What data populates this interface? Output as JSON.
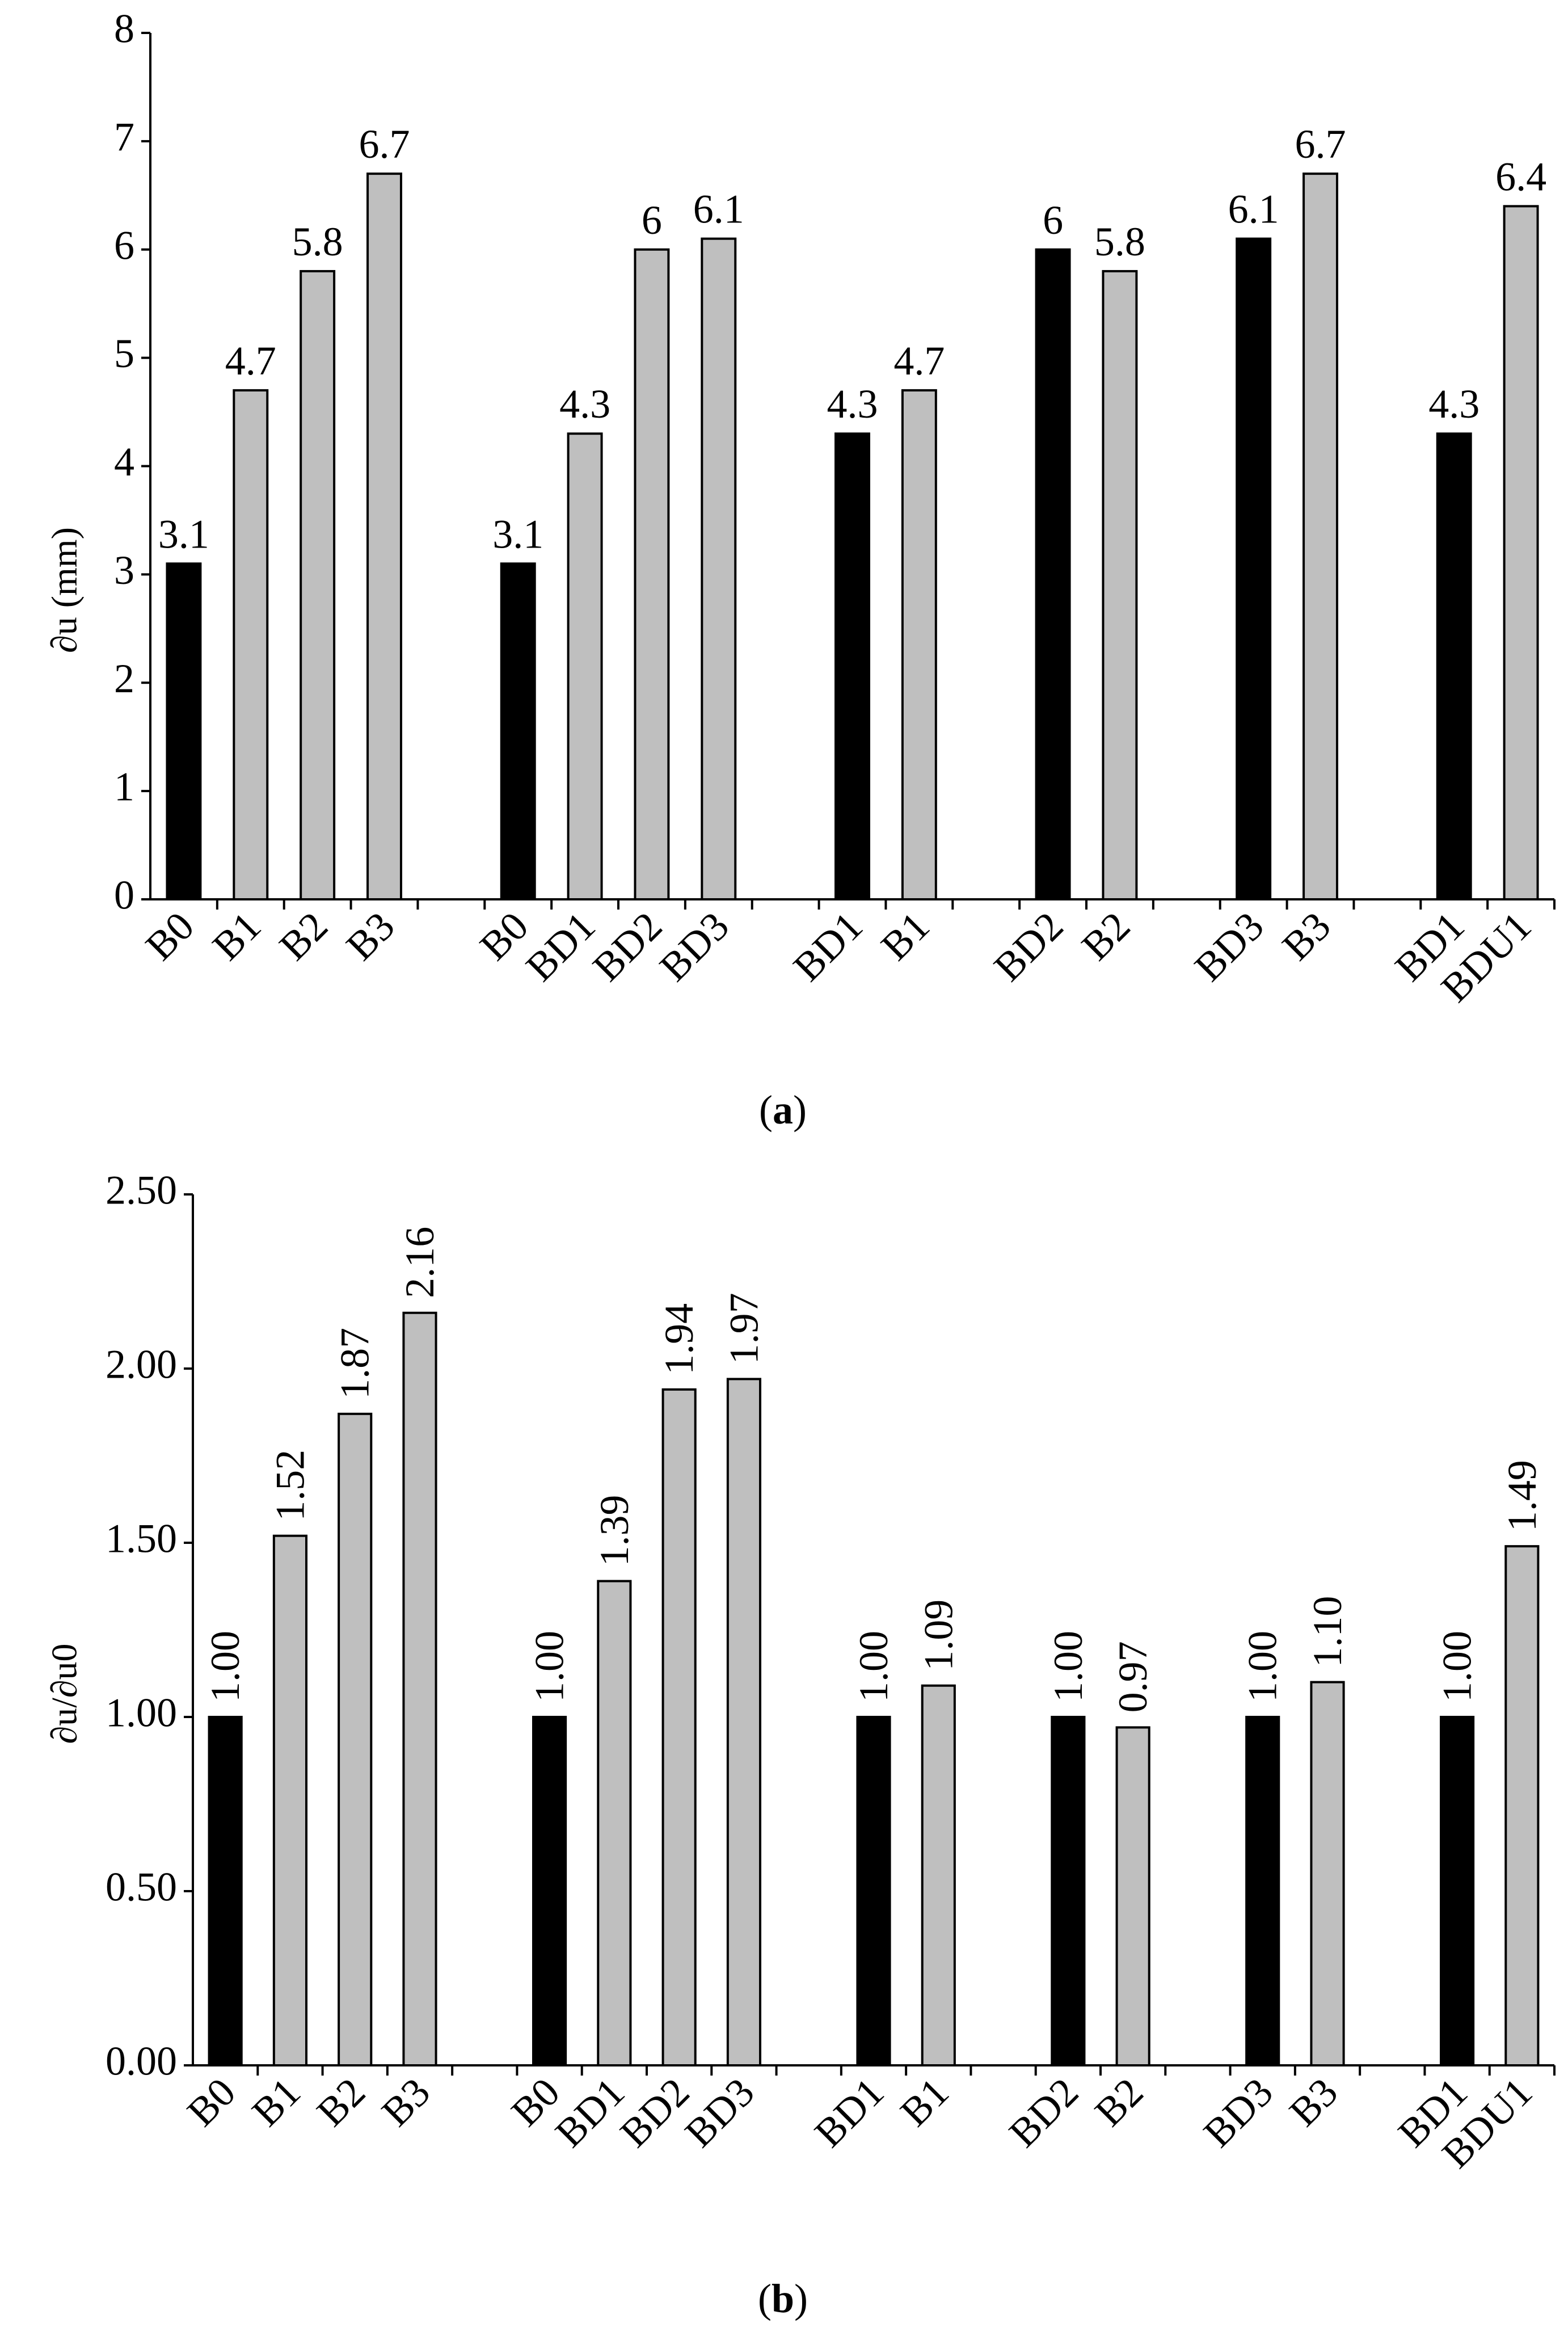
{
  "colors": {
    "reference_bar": "#000000",
    "comparison_bar": "#bfbfbf",
    "axis": "#000000",
    "background": "#ffffff"
  },
  "chart_data": [
    {
      "type": "bar",
      "panel": "a",
      "caption": "(a)",
      "caption_letter": "a",
      "title": "",
      "xlabel": "",
      "ylabel": "∂u (mm)",
      "ylim": [
        0,
        8
      ],
      "yticks": [
        0,
        1,
        2,
        3,
        4,
        5,
        6,
        7,
        8
      ],
      "ytick_labels": [
        "0",
        "1",
        "2",
        "3",
        "4",
        "5",
        "6",
        "7",
        "8"
      ],
      "grid": false,
      "label_orientation": "horizontal",
      "groups": [
        {
          "bars": [
            {
              "category": "B0",
              "value": 3.1,
              "label": "3.1",
              "kind": "reference"
            },
            {
              "category": "B1",
              "value": 4.7,
              "label": "4.7",
              "kind": "comparison"
            },
            {
              "category": "B2",
              "value": 5.8,
              "label": "5.8",
              "kind": "comparison"
            },
            {
              "category": "B3",
              "value": 6.7,
              "label": "6.7",
              "kind": "comparison"
            }
          ]
        },
        {
          "bars": [
            {
              "category": "B0",
              "value": 3.1,
              "label": "3.1",
              "kind": "reference"
            },
            {
              "category": "BD1",
              "value": 4.3,
              "label": "4.3",
              "kind": "comparison"
            },
            {
              "category": "BD2",
              "value": 6.0,
              "label": "6",
              "kind": "comparison"
            },
            {
              "category": "BD3",
              "value": 6.1,
              "label": "6.1",
              "kind": "comparison"
            }
          ]
        },
        {
          "bars": [
            {
              "category": "BD1",
              "value": 4.3,
              "label": "4.3",
              "kind": "reference"
            },
            {
              "category": "B1",
              "value": 4.7,
              "label": "4.7",
              "kind": "comparison"
            }
          ]
        },
        {
          "bars": [
            {
              "category": "BD2",
              "value": 6.0,
              "label": "6",
              "kind": "reference"
            },
            {
              "category": "B2",
              "value": 5.8,
              "label": "5.8",
              "kind": "comparison"
            }
          ]
        },
        {
          "bars": [
            {
              "category": "BD3",
              "value": 6.1,
              "label": "6.1",
              "kind": "reference"
            },
            {
              "category": "B3",
              "value": 6.7,
              "label": "6.7",
              "kind": "comparison"
            }
          ]
        },
        {
          "bars": [
            {
              "category": "BD1",
              "value": 4.3,
              "label": "4.3",
              "kind": "reference"
            },
            {
              "category": "BDU1",
              "value": 6.4,
              "label": "6.4",
              "kind": "comparison"
            }
          ]
        }
      ]
    },
    {
      "type": "bar",
      "panel": "b",
      "caption": "(b)",
      "caption_letter": "b",
      "title": "",
      "xlabel": "",
      "ylabel": "∂u/∂u0",
      "ylim": [
        0,
        2.5
      ],
      "yticks": [
        0,
        0.5,
        1.0,
        1.5,
        2.0,
        2.5
      ],
      "ytick_labels": [
        "0.00",
        "0.50",
        "1.00",
        "1.50",
        "2.00",
        "2.50"
      ],
      "grid": false,
      "label_orientation": "vertical",
      "groups": [
        {
          "bars": [
            {
              "category": "B0",
              "value": 1.0,
              "label": "1.00",
              "kind": "reference"
            },
            {
              "category": "B1",
              "value": 1.52,
              "label": "1.52",
              "kind": "comparison"
            },
            {
              "category": "B2",
              "value": 1.87,
              "label": "1.87",
              "kind": "comparison"
            },
            {
              "category": "B3",
              "value": 2.16,
              "label": "2.16",
              "kind": "comparison"
            }
          ]
        },
        {
          "bars": [
            {
              "category": "B0",
              "value": 1.0,
              "label": "1.00",
              "kind": "reference"
            },
            {
              "category": "BD1",
              "value": 1.39,
              "label": "1.39",
              "kind": "comparison"
            },
            {
              "category": "BD2",
              "value": 1.94,
              "label": "1.94",
              "kind": "comparison"
            },
            {
              "category": "BD3",
              "value": 1.97,
              "label": "1.97",
              "kind": "comparison"
            }
          ]
        },
        {
          "bars": [
            {
              "category": "BD1",
              "value": 1.0,
              "label": "1.00",
              "kind": "reference"
            },
            {
              "category": "B1",
              "value": 1.09,
              "label": "1.09",
              "kind": "comparison"
            }
          ]
        },
        {
          "bars": [
            {
              "category": "BD2",
              "value": 1.0,
              "label": "1.00",
              "kind": "reference"
            },
            {
              "category": "B2",
              "value": 0.97,
              "label": "0.97",
              "kind": "comparison"
            }
          ]
        },
        {
          "bars": [
            {
              "category": "BD3",
              "value": 1.0,
              "label": "1.00",
              "kind": "reference"
            },
            {
              "category": "B3",
              "value": 1.1,
              "label": "1.10",
              "kind": "comparison"
            }
          ]
        },
        {
          "bars": [
            {
              "category": "BD1",
              "value": 1.0,
              "label": "1.00",
              "kind": "reference"
            },
            {
              "category": "BDU1",
              "value": 1.49,
              "label": "1.49",
              "kind": "comparison"
            }
          ]
        }
      ]
    }
  ]
}
